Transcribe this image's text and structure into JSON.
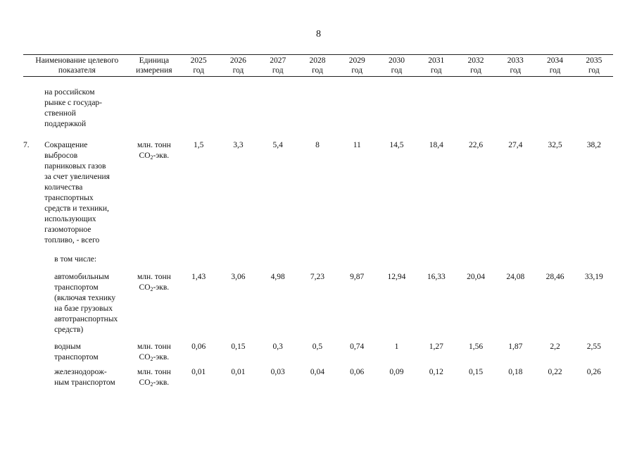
{
  "page_number": "8",
  "header": {
    "name": [
      "Наименование целевого",
      "показателя"
    ],
    "unit": [
      "Единица",
      "измерения"
    ],
    "years": [
      "2025",
      "2026",
      "2027",
      "2028",
      "2029",
      "2030",
      "2031",
      "2032",
      "2033",
      "2034",
      "2035"
    ],
    "year_suffix": "год"
  },
  "continuation": {
    "lines": [
      "на российском",
      "рынке с государ-",
      "ственной",
      "поддержкой"
    ]
  },
  "rows": [
    {
      "index": "7.",
      "lines": [
        "Сокращение",
        "выбросов",
        "парниковых газов",
        "за счет увеличения",
        "количества",
        "транспортных",
        "средств и техники,",
        "использующих",
        "газомоторное",
        "топливо, - всего"
      ],
      "unit_line1": "млн. тонн",
      "unit_co": "СО",
      "unit_sub": "2",
      "unit_rest": "-экв.",
      "values": [
        "1,5",
        "3,3",
        "5,4",
        "8",
        "11",
        "14,5",
        "18,4",
        "22,6",
        "27,4",
        "32,5",
        "38,2"
      ]
    }
  ],
  "intro_label": "в том числе:",
  "subrows": [
    {
      "lines": [
        "автомобильным",
        "транспортом",
        "(включая технику",
        "на базе грузовых",
        "автотранспортных",
        "средств)"
      ],
      "unit_line1": "млн. тонн",
      "unit_co": "СО",
      "unit_sub": "2",
      "unit_rest": "-экв.",
      "values": [
        "1,43",
        "3,06",
        "4,98",
        "7,23",
        "9,87",
        "12,94",
        "16,33",
        "20,04",
        "24,08",
        "28,46",
        "33,19"
      ]
    },
    {
      "lines": [
        "водным",
        "транспортом"
      ],
      "unit_line1": "млн. тонн",
      "unit_co": "СО",
      "unit_sub": "2",
      "unit_rest": "-экв.",
      "values": [
        "0,06",
        "0,15",
        "0,3",
        "0,5",
        "0,74",
        "1",
        "1,27",
        "1,56",
        "1,87",
        "2,2",
        "2,55"
      ]
    },
    {
      "lines": [
        "железнодорож-",
        "ным транспортом"
      ],
      "unit_line1": "млн. тонн",
      "unit_co": "СО",
      "unit_sub": "2",
      "unit_rest": "-экв.",
      "values": [
        "0,01",
        "0,01",
        "0,03",
        "0,04",
        "0,06",
        "0,09",
        "0,12",
        "0,15",
        "0,18",
        "0,22",
        "0,26"
      ]
    }
  ]
}
